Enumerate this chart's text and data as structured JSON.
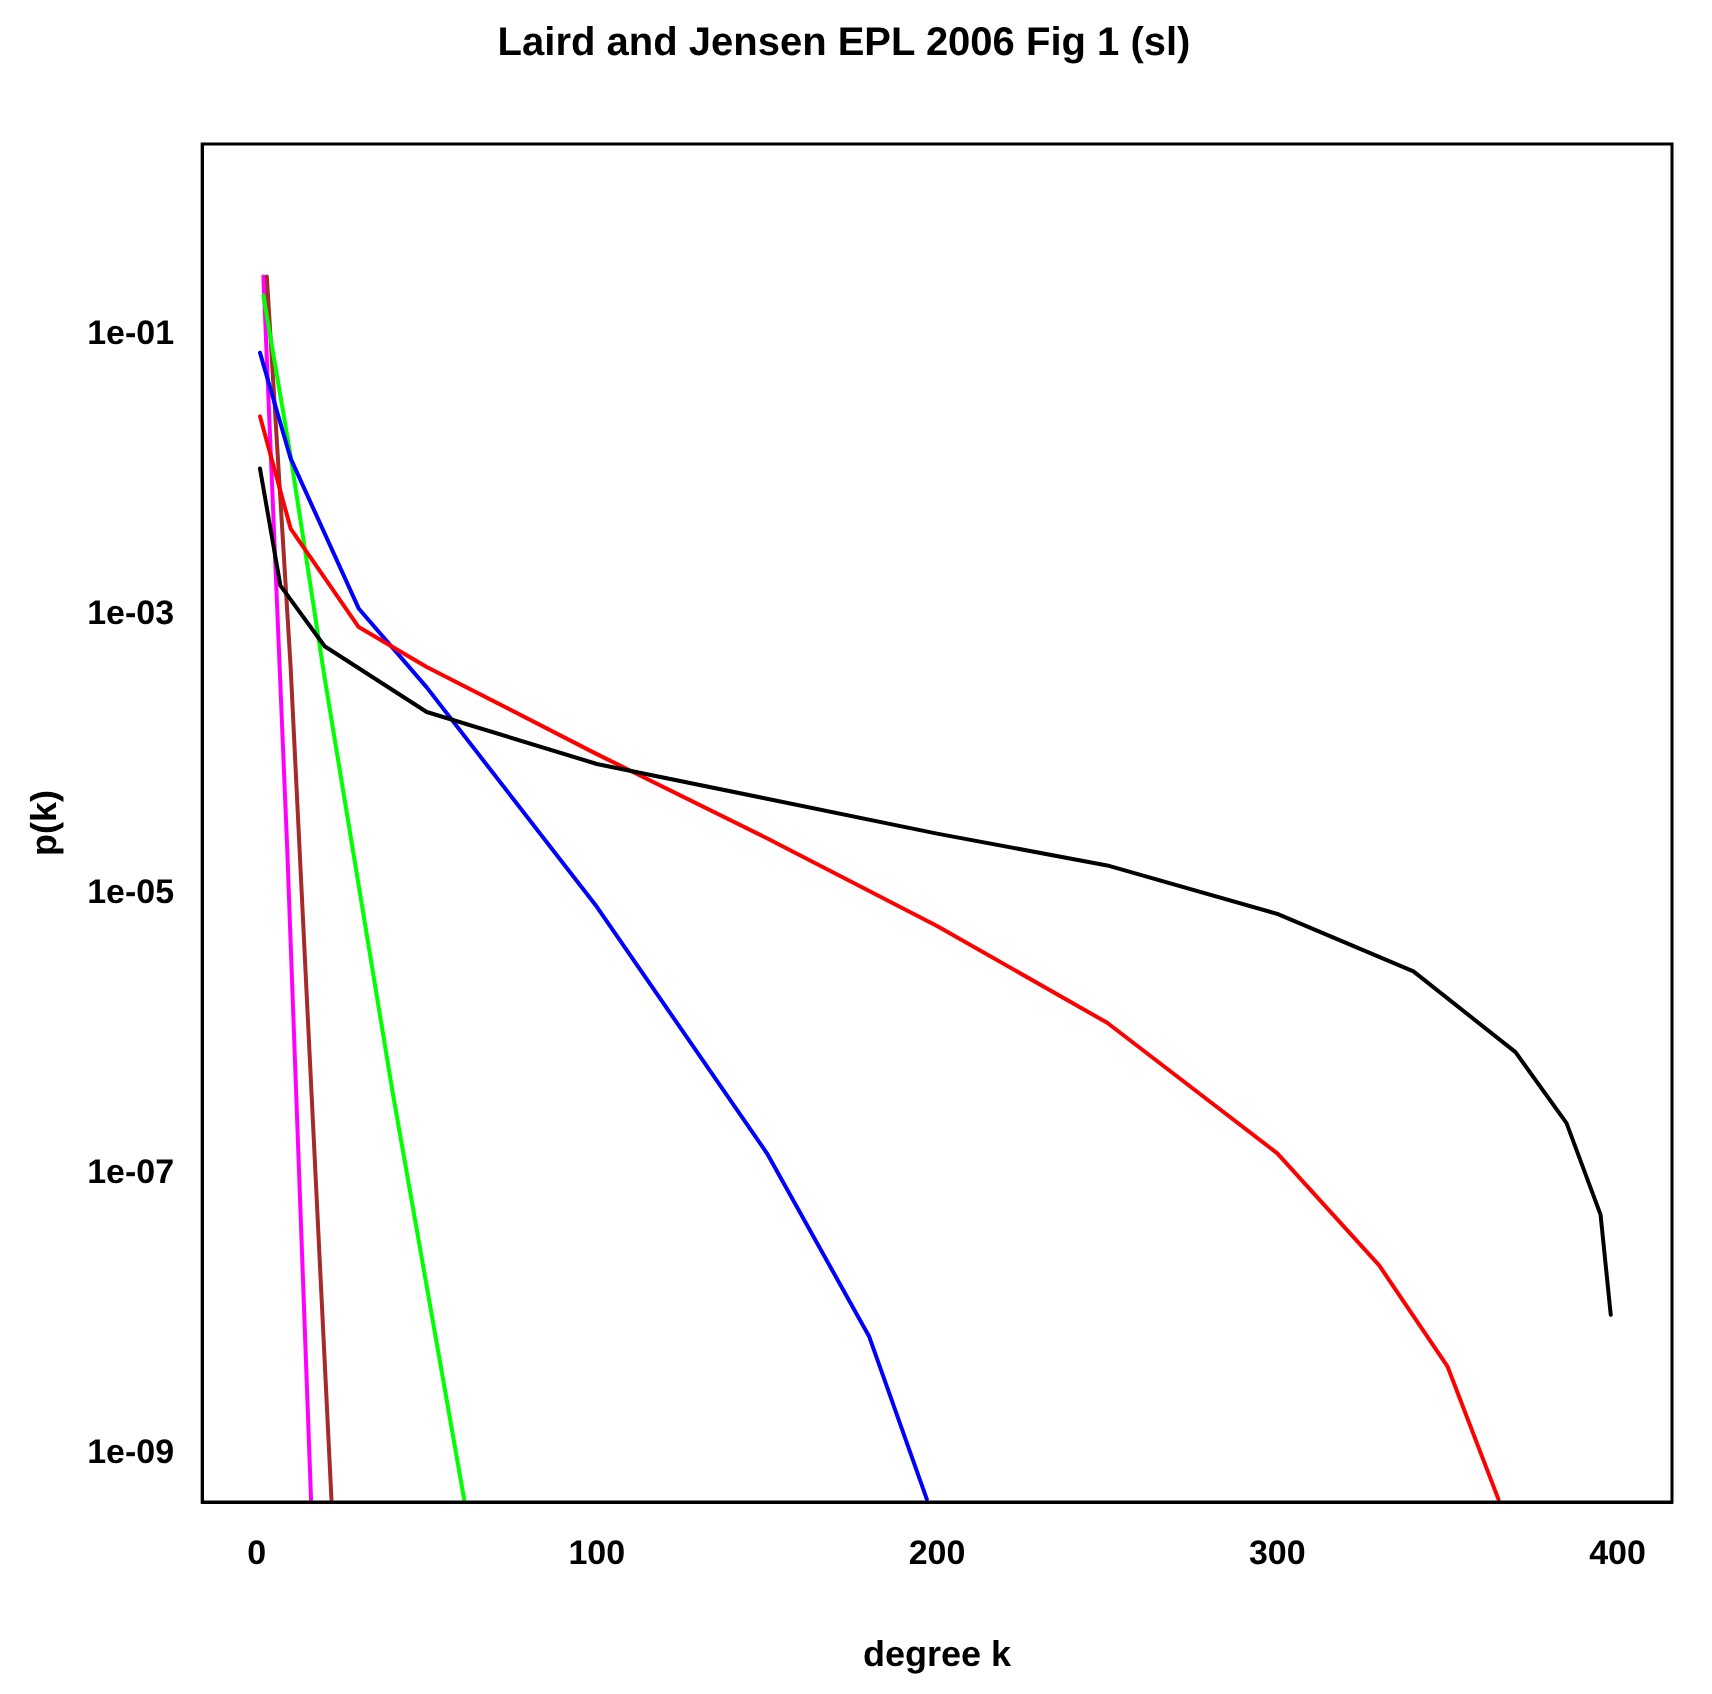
{
  "chart_data": {
    "type": "line",
    "title": "Laird and Jensen EPL 2006 Fig 1 (sl)",
    "xlabel": "degree k",
    "ylabel": "p(k)",
    "log": "y",
    "grid": false,
    "legend": false,
    "marker": "none",
    "line_style": "solid",
    "xlim": [
      -16,
      416
    ],
    "xticks": [
      0,
      100,
      200,
      300,
      400
    ],
    "ylim": [
      4.5e-10,
      2.3
    ],
    "yticks": [
      {
        "value": 0.1,
        "label": "1e-01"
      },
      {
        "value": 0.001,
        "label": "1e-03"
      },
      {
        "value": 1e-05,
        "label": "1e-05"
      },
      {
        "value": 1e-07,
        "label": "1e-07"
      },
      {
        "value": 1e-09,
        "label": "1e-09"
      }
    ],
    "series": [
      {
        "color": "#000000",
        "x": [
          1,
          7,
          20,
          50,
          100,
          150,
          200,
          250,
          300,
          340,
          370,
          385,
          395,
          398
        ],
        "values": [
          0.011,
          0.0016,
          0.00059,
          0.0002,
          8.5e-05,
          4.8e-05,
          2.7e-05,
          1.6e-05,
          7.2e-06,
          2.8e-06,
          7.4e-07,
          2.3e-07,
          5.1e-08,
          9.8e-09
        ]
      },
      {
        "color": "#ff0000",
        "x": [
          1,
          10,
          30,
          50,
          100,
          150,
          200,
          250,
          300,
          330,
          350,
          365
        ],
        "values": [
          0.026,
          0.0041,
          0.00081,
          0.00042,
          0.0001,
          2.5e-05,
          5.9e-06,
          1.2e-06,
          1.4e-07,
          2.2e-08,
          4.2e-09,
          4.7e-10
        ]
      },
      {
        "color": "#0000ff",
        "x": [
          1,
          10,
          30,
          50,
          100,
          150,
          180,
          197
        ],
        "values": [
          0.074,
          0.013,
          0.0011,
          0.0003,
          8.1e-06,
          1.4e-07,
          6.9e-09,
          4.7e-10
        ]
      },
      {
        "color": "#00ff00",
        "x": [
          2,
          10,
          20,
          40,
          61
        ],
        "values": [
          0.19,
          0.0135,
          0.00035,
          3.8e-07,
          4.7e-10
        ]
      },
      {
        "color": "#a52a2a",
        "x": [
          3,
          10,
          22
        ],
        "values": [
          0.26,
          0.00042,
          4.7e-10
        ]
      },
      {
        "color": "#ff00ff",
        "x": [
          2,
          9,
          16
        ],
        "values": [
          0.26,
          2.1e-05,
          4.7e-10
        ]
      }
    ]
  }
}
